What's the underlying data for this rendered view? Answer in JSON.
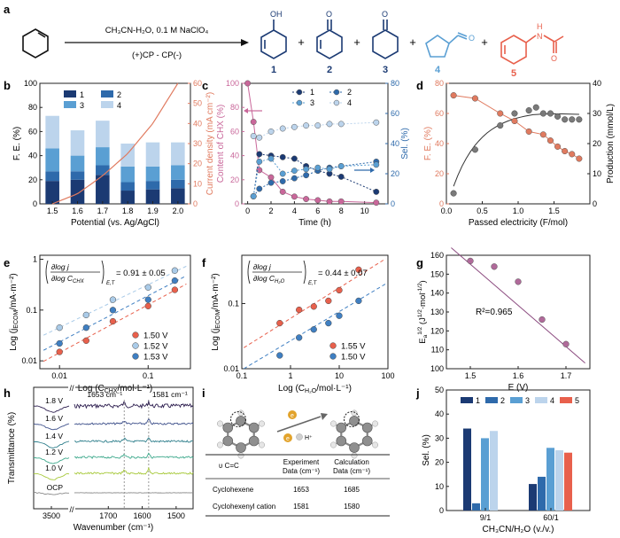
{
  "panels": {
    "a": {
      "letter": "a",
      "conditions": "CH₃CN-H₂O, 0.1 M NaClO₄",
      "electrodes": "(+)CP - CP(-)",
      "product_numbers": [
        "1",
        "2",
        "3",
        "4",
        "5"
      ],
      "substituents": {
        "oh": "OH",
        "o": "O",
        "nh": "N",
        "h": "H"
      },
      "plus": "+"
    },
    "b": {
      "letter": "b"
    },
    "c": {
      "letter": "c"
    },
    "d": {
      "letter": "d"
    },
    "e": {
      "letter": "e",
      "formula_value": "= 0.91 ± 0.05"
    },
    "f": {
      "letter": "f",
      "formula_value": "= 0.44 ± 0.07"
    },
    "g": {
      "letter": "g",
      "annotation": "R²=0.965"
    },
    "h": {
      "letter": "h",
      "annot1": "1653 cm⁻¹",
      "annot2": "1581 cm⁻¹"
    },
    "i": {
      "letter": "i",
      "electron": "e",
      "proton": "H⁺",
      "table": {
        "headers": [
          "υ C=C",
          "Experiment Data (cm⁻¹)",
          "Calculation Data (cm⁻¹)"
        ],
        "header_lines": [
          [
            "υ C=C"
          ],
          [
            "Experiment",
            "Data (cm⁻¹)"
          ],
          [
            "Calculation",
            "Data (cm⁻¹)"
          ]
        ],
        "rows": [
          [
            "Cyclohexene",
            "1653",
            "1685"
          ],
          [
            "Cyclohexenyl cation",
            "1581",
            "1580"
          ]
        ]
      }
    },
    "j": {
      "letter": "j"
    }
  },
  "colors": {
    "c1": "#1b3a73",
    "c2": "#2e6aab",
    "c3": "#5a9fd3",
    "c4": "#bcd4ec",
    "c5": "#e8604c",
    "orange": "#e07a5f",
    "pink": "#c9679a",
    "grey": "#7a7a7a"
  },
  "chart_data": [
    {
      "panel": "b",
      "type": "bar",
      "categories": [
        "1.5",
        "1.6",
        "1.7",
        "1.8",
        "1.9",
        "2.0"
      ],
      "series": [
        {
          "name": "1",
          "values": [
            19,
            20,
            24,
            11,
            12,
            13
          ]
        },
        {
          "name": "2",
          "values": [
            8,
            7,
            8,
            7,
            7,
            7
          ]
        },
        {
          "name": "3",
          "values": [
            19,
            13,
            15,
            13,
            12,
            12
          ]
        },
        {
          "name": "4",
          "values": [
            27,
            21,
            22,
            19,
            20,
            19
          ]
        }
      ],
      "line": {
        "x": [
          1.5,
          1.6,
          1.7,
          1.8,
          1.9,
          2.0
        ],
        "y": [
          0,
          5,
          14,
          25,
          40,
          60
        ]
      },
      "xlabel": "Potential (vs. Ag/AgCl)",
      "ylabel": "F. E. (%)",
      "y2label": "Current density (mA cm⁻²)",
      "ylim": [
        0,
        100
      ],
      "y2lim": [
        0,
        60
      ],
      "yticks": [
        0,
        20,
        40,
        60,
        80,
        100
      ],
      "y2ticks": [
        0,
        10,
        20,
        30,
        40,
        50,
        60
      ],
      "legend": "top-left"
    },
    {
      "panel": "c",
      "type": "scatter",
      "xlabel": "Time (h)",
      "ylabel": "Content of CHX (%)",
      "y2label": "Sel. (%)",
      "xlim": [
        -0.5,
        12
      ],
      "ylim": [
        0,
        100
      ],
      "y2lim": [
        0,
        80
      ],
      "xticks": [
        0,
        2,
        4,
        6,
        8,
        10
      ],
      "yticks": [
        0,
        20,
        40,
        60,
        80,
        100
      ],
      "y2ticks": [
        0,
        20,
        40,
        60,
        80
      ],
      "chx": {
        "x": [
          0,
          0.5,
          1,
          2,
          3,
          4,
          5,
          6,
          7,
          8,
          11
        ],
        "y": [
          100,
          68,
          28,
          22,
          10,
          6,
          4,
          3,
          2,
          2,
          1
        ]
      },
      "series": [
        {
          "name": "1",
          "x": [
            0.5,
            1,
            2,
            3,
            4,
            5,
            6,
            7,
            8,
            11
          ],
          "y": [
            5,
            33,
            32,
            31,
            30,
            25,
            22,
            20,
            18,
            8
          ]
        },
        {
          "name": "2",
          "x": [
            0.5,
            1,
            2,
            3,
            4,
            5,
            6,
            7,
            8,
            11
          ],
          "y": [
            5,
            10,
            14,
            15,
            17,
            19,
            22,
            24,
            25,
            28
          ]
        },
        {
          "name": "3",
          "x": [
            0.5,
            1,
            2,
            3,
            4,
            5,
            6,
            7,
            8,
            11
          ],
          "y": [
            5,
            28,
            30,
            20,
            22,
            23,
            24,
            23,
            25,
            26
          ]
        },
        {
          "name": "4",
          "x": [
            0.5,
            1,
            2,
            3,
            4,
            5,
            6,
            7,
            8,
            11
          ],
          "y": [
            45,
            44,
            48,
            50,
            51,
            52,
            52,
            53,
            53,
            54
          ]
        }
      ],
      "legend": "top-right"
    },
    {
      "panel": "d",
      "type": "scatter",
      "xlabel": "Passed electricity (F/mol)",
      "ylabel": "F. E. (%)",
      "y2label": "Production (mmol/L)",
      "xlim": [
        0,
        2
      ],
      "ylim": [
        0,
        80
      ],
      "y2lim": [
        0,
        40
      ],
      "xticks": [
        0,
        0.5,
        1.0,
        1.5
      ],
      "yticks": [
        0,
        20,
        40,
        60,
        80
      ],
      "y2ticks": [
        0,
        10,
        20,
        30,
        40
      ],
      "fe": {
        "x": [
          0.1,
          0.4,
          0.75,
          0.95,
          1.15,
          1.35,
          1.45,
          1.55,
          1.65,
          1.75,
          1.85
        ],
        "y": [
          72,
          70,
          60,
          55,
          48,
          46,
          42,
          38,
          35,
          33,
          30
        ]
      },
      "production": {
        "x": [
          0.1,
          0.4,
          0.75,
          0.95,
          1.15,
          1.25,
          1.35,
          1.45,
          1.55,
          1.65,
          1.75,
          1.85
        ],
        "y": [
          3.5,
          18,
          26,
          30,
          31,
          32,
          30,
          30,
          29,
          28,
          28,
          28
        ]
      }
    },
    {
      "panel": "e",
      "type": "scatter",
      "xlabel": "Log (Cᴄʜх/mol·L⁻¹)",
      "xlabel_main": "Log (C",
      "xlabel_sub": "CHX",
      "xlabel_tail": "/mol·L⁻¹)",
      "ylabel": "Log (jᴄᴄᴍ/mA·m⁻²)",
      "ylabel_main": "Log (j",
      "ylabel_sub": "ECOM",
      "ylabel_tail": "/mA·m⁻²)",
      "xscale": "log",
      "yscale": "log",
      "xlim": [
        0.006,
        0.3
      ],
      "ylim": [
        0.007,
        1.2
      ],
      "xticks": [
        0.01,
        0.1
      ],
      "xticklabels": [
        "0.01",
        "0.1"
      ],
      "yticks": [
        0.01,
        0.1,
        1
      ],
      "yticklabels": [
        "0.01",
        "0.1",
        "1"
      ],
      "series": [
        {
          "name": "1.50 V",
          "x": [
            0.01,
            0.02,
            0.04,
            0.1,
            0.2
          ],
          "y": [
            0.015,
            0.025,
            0.06,
            0.12,
            0.25
          ]
        },
        {
          "name": "1.52 V",
          "x": [
            0.01,
            0.02,
            0.04,
            0.1,
            0.2
          ],
          "y": [
            0.045,
            0.08,
            0.16,
            0.28,
            0.6
          ]
        },
        {
          "name": "1.53 V",
          "x": [
            0.01,
            0.02,
            0.04,
            0.1,
            0.2
          ],
          "y": [
            0.022,
            0.045,
            0.1,
            0.16,
            0.38
          ]
        }
      ],
      "legend": "bottom-right"
    },
    {
      "panel": "f",
      "type": "scatter",
      "xlabel_main": "Log (C",
      "xlabel_sub": "H₂O",
      "xlabel_tail": "/mol·L⁻¹)",
      "ylabel_main": "Log (j",
      "ylabel_sub": "ECOM",
      "ylabel_tail": "/mA·m⁻²)",
      "xscale": "log",
      "yscale": "log",
      "xlim": [
        0.1,
        100
      ],
      "ylim": [
        0.01,
        0.55
      ],
      "xticks": [
        0.1,
        1,
        10,
        100
      ],
      "xticklabels": [
        "0.1",
        "1",
        "10",
        "100"
      ],
      "yticks": [
        0.01,
        0.1
      ],
      "yticklabels": [
        "0.01",
        "0.1"
      ],
      "series": [
        {
          "name": "1.55 V",
          "x": [
            0.6,
            1.5,
            3,
            6,
            10,
            25
          ],
          "y": [
            0.05,
            0.08,
            0.09,
            0.11,
            0.16,
            0.33
          ]
        },
        {
          "name": "1.50 V",
          "x": [
            0.6,
            1.5,
            3,
            6,
            10,
            25
          ],
          "y": [
            0.016,
            0.03,
            0.04,
            0.05,
            0.065,
            0.11
          ]
        }
      ],
      "legend": "bottom-right"
    },
    {
      "panel": "g",
      "type": "scatter",
      "xlabel": "E (V)",
      "ylabel": "Eₐ¹ᐟ² (J¹ᐟ²·mol⁻¹ᐟ²)",
      "ylabel_main": "E",
      "ylabel_sub": "a",
      "ylabel_sup": "1/2",
      "ylabel_tail": " (J",
      "ylabel_sup2": "1/2",
      "ylabel_tail2": "·mol",
      "ylabel_sup3": "-1/2",
      "ylabel_end": ")",
      "xlim": [
        1.45,
        1.75
      ],
      "ylim": [
        100,
        160
      ],
      "xticks": [
        1.5,
        1.6,
        1.7
      ],
      "yticks": [
        100,
        110,
        120,
        130,
        140,
        150,
        160
      ],
      "x": [
        1.5,
        1.55,
        1.6,
        1.65,
        1.7
      ],
      "y": [
        157,
        154,
        146,
        126,
        113
      ],
      "fit": {
        "x": [
          1.46,
          1.74
        ],
        "y": [
          164,
          103
        ]
      }
    },
    {
      "panel": "h",
      "type": "line",
      "xlabel": "Wavenumber (cm⁻¹)",
      "ylabel": "Transmittance (%)",
      "xticks": [
        3500,
        1600,
        1500
      ],
      "xticklabels": [
        "3500",
        "1600",
        "1500"
      ],
      "xtick_1700": "1700",
      "series": [
        {
          "name": "1.8 V"
        },
        {
          "name": "1.6 V"
        },
        {
          "name": "1.4 V"
        },
        {
          "name": "1.2 V"
        },
        {
          "name": "1.0 V"
        },
        {
          "name": "OCP"
        }
      ],
      "colors": [
        "#2d1e4f",
        "#3d4f8a",
        "#2f7f8c",
        "#3ea98c",
        "#a7c93a",
        "#8a8a8a"
      ]
    },
    {
      "panel": "j",
      "type": "bar",
      "categories": [
        "9/1",
        "60/1"
      ],
      "series": [
        {
          "name": "1",
          "values": [
            34,
            11
          ]
        },
        {
          "name": "2",
          "values": [
            3,
            14
          ]
        },
        {
          "name": "3",
          "values": [
            30,
            26
          ]
        },
        {
          "name": "4",
          "values": [
            33,
            25
          ]
        },
        {
          "name": "5",
          "values": [
            0,
            24
          ]
        }
      ],
      "xlabel": "CH₃CN/H₂O (v./v.)",
      "ylabel": "Sel. (%)",
      "ylim": [
        0,
        50
      ],
      "yticks": [
        0,
        10,
        20,
        30,
        40,
        50
      ],
      "legend": "top"
    }
  ]
}
